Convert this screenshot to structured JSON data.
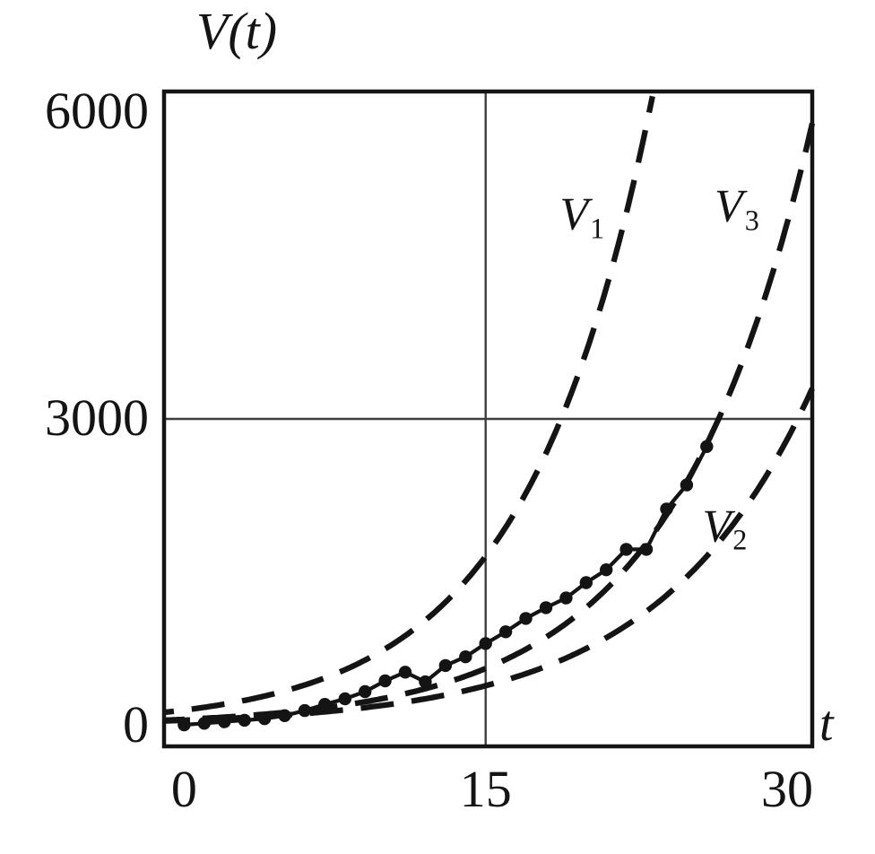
{
  "figure": {
    "background": "#ffffff",
    "ink_color": "#141414",
    "grid_color": "#3e3e3e"
  },
  "chart_data": {
    "type": "line",
    "title": "V(t)",
    "xlabel": "t",
    "ylabel": "V(t)",
    "xlim": [
      -1,
      31.25
    ],
    "ylim": [
      -200,
      6200
    ],
    "grid": "single gridline at x=15 and y=3000 crossing the plot",
    "legend_position": "inline-annotations",
    "x_ticks": [
      {
        "value": 0,
        "label": "0"
      },
      {
        "value": 15,
        "label": "15"
      },
      {
        "value": 30,
        "label": "30"
      }
    ],
    "y_ticks": [
      {
        "value": 0,
        "label": "0"
      },
      {
        "value": 3000,
        "label": "3000"
      },
      {
        "value": 6000,
        "label": "6000"
      }
    ],
    "gridlines": {
      "x": [
        15
      ],
      "y": [
        3000
      ]
    },
    "curves": [
      {
        "id": "V1",
        "label_base": "V",
        "label_sub": "1",
        "style": "dashed",
        "model": "V0*exp(k*t)",
        "V0": 155,
        "k": 0.158,
        "t_start": -1,
        "t_end": 23.35,
        "samples": {
          "t": [
            0,
            5,
            10,
            15,
            18.77,
            20,
            23.35
          ],
          "v": [
            155,
            342,
            753,
            1658,
            3000,
            3654,
            6200
          ]
        },
        "label_pos": {
          "t": 19.8,
          "v": 4970
        }
      },
      {
        "id": "V2",
        "label_base": "V",
        "label_sub": "2",
        "style": "dashed",
        "model": "V0*exp(k*t)",
        "V0": 55,
        "k": 0.131,
        "t_start": -1,
        "t_end": 31.25,
        "samples": {
          "t": [
            0,
            5,
            10,
            15,
            20,
            25,
            30,
            31.25
          ],
          "v": [
            55,
            106,
            204,
            392,
            756,
            1454,
            2800,
            3297
          ]
        },
        "label_pos": {
          "t": 26.9,
          "v": 1925
        }
      },
      {
        "id": "V3",
        "label_base": "V",
        "label_sub": "3",
        "style": "dashed",
        "model": "V0*exp(k*t)",
        "V0": 64,
        "k": 0.1447,
        "t_start": -1,
        "t_end": 31.25,
        "samples": {
          "t": [
            0,
            5,
            10,
            15,
            20,
            25,
            26.6,
            30,
            31.25
          ],
          "v": [
            64,
            132,
            273,
            561,
            1155,
            2378,
            3000,
            4897,
            5866
          ]
        },
        "label_pos": {
          "t": 27.5,
          "v": 5050
        }
      }
    ],
    "observations": {
      "style": "dots-connected-by-line",
      "t": [
        0,
        1,
        2,
        3,
        4,
        5,
        6,
        7,
        8,
        9,
        10,
        11,
        12,
        13,
        14,
        15,
        16,
        17,
        18,
        19,
        20,
        21,
        22,
        23,
        24,
        25,
        26
      ],
      "v": [
        10,
        25,
        40,
        55,
        70,
        100,
        150,
        210,
        265,
        335,
        440,
        525,
        430,
        590,
        675,
        805,
        920,
        1050,
        1155,
        1250,
        1400,
        1525,
        1725,
        1725,
        2120,
        2355,
        2730
      ]
    }
  }
}
